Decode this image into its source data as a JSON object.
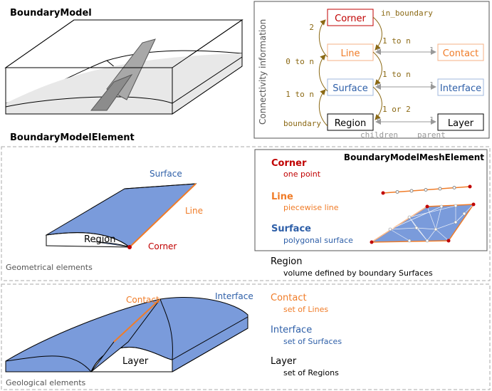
{
  "titles": {
    "boundary_model": "BoundaryModel",
    "boundary_model_element": "BoundaryModelElement",
    "mesh_element": "BoundaryModelMeshElement"
  },
  "connectivity": {
    "vertical_label": "Connectivity information",
    "nodes": {
      "corner": "Corner",
      "line": "Line",
      "surface": "Surface",
      "region": "Region",
      "contact": "Contact",
      "interface": "Interface",
      "layer": "Layer"
    },
    "labels": {
      "in_boundary": "in_boundary",
      "two": "2",
      "zero_to_n": "0 to n",
      "one_to_n_left": "1 to n",
      "boundary": "boundary",
      "one_to_n_a": "1 to n",
      "one_to_n_b": "1 to n",
      "one_or_two": "1 or 2",
      "n1": "n",
      "one1": "1",
      "n2": "n",
      "one2": "1",
      "n3": "n",
      "one3": "1",
      "children": "children",
      "parent": "parent"
    }
  },
  "geometric_panel": {
    "caption": "Geometrical elements",
    "labels": {
      "surface": "Surface",
      "line": "Line",
      "region": "Region",
      "corner": "Corner"
    }
  },
  "mesh_panel": {
    "corner_title": "Corner",
    "corner_desc": "one point",
    "line_title": "Line",
    "line_desc": "piecewise line",
    "surface_title": "Surface",
    "surface_desc": "polygonal surface"
  },
  "region_desc": {
    "title": "Region",
    "desc": "volume defined by boundary Surfaces"
  },
  "geological_panel": {
    "caption": "Geological elements",
    "labels": {
      "contact": "Contact",
      "interface": "Interface",
      "layer": "Layer"
    },
    "legend": {
      "contact_title": "Contact",
      "contact_desc": "set of Lines",
      "interface_title": "Interface",
      "interface_desc": "set of Surfaces",
      "layer_title": "Layer",
      "layer_desc": "set of Regions"
    }
  },
  "colors": {
    "corner": "#c00000",
    "line": "#f07c28",
    "surface": "#2e5fa8",
    "surface_fill": "#7a9bdb",
    "region": "#000000",
    "arrow": "#8b6914",
    "gray": "#999999"
  }
}
